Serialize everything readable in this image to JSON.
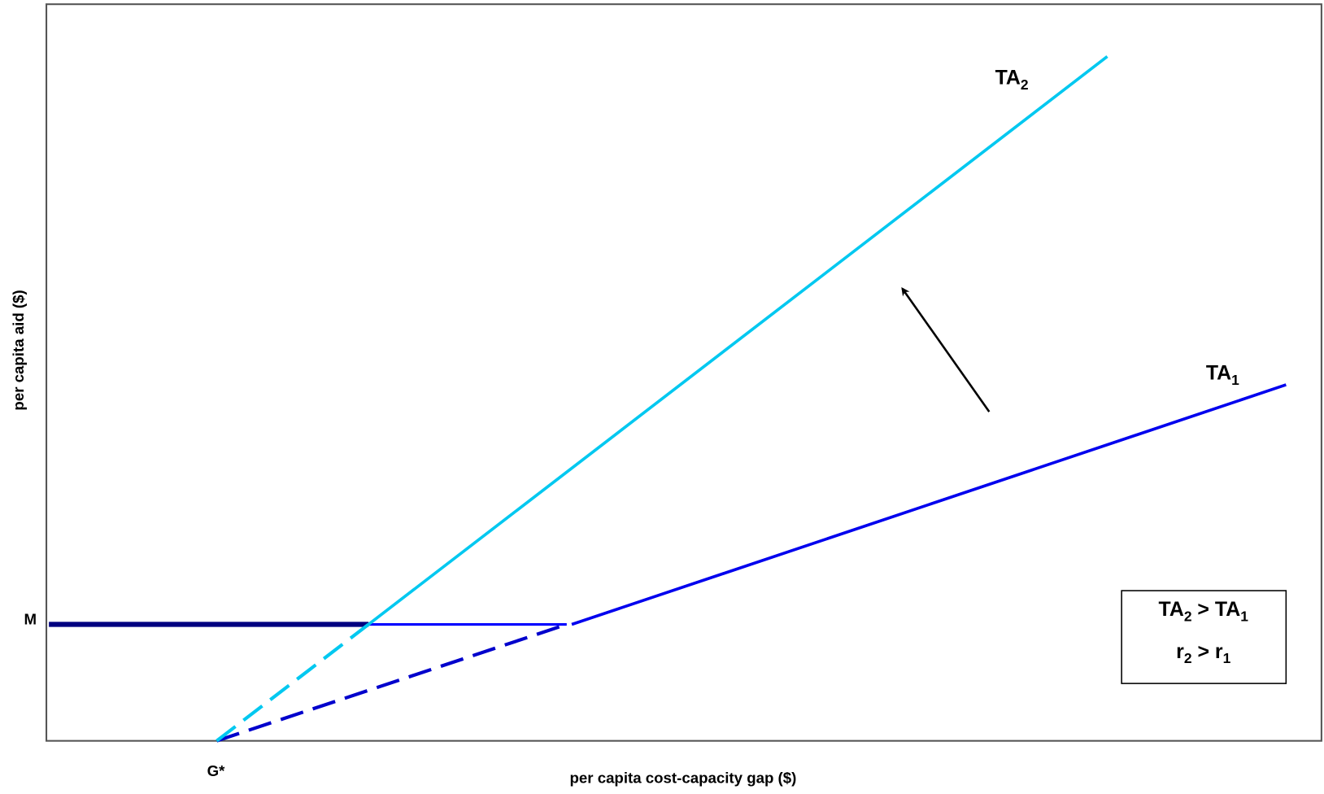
{
  "axes": {
    "y_label": "per capita aid ($)",
    "x_label": "per capita cost-capacity gap ($)",
    "y_marker": "M",
    "x_marker": "G*"
  },
  "curves": {
    "ta2": {
      "main": "TA",
      "sub": "2"
    },
    "ta1": {
      "main": "TA",
      "sub": "1"
    }
  },
  "legend_box": {
    "rows": [
      [
        {
          "main": "TA",
          "sub": "2"
        },
        {
          "main": " > TA",
          "sub": "1"
        }
      ],
      [
        {
          "main": "r",
          "sub": "2"
        },
        {
          "main": " > r",
          "sub": "1"
        }
      ]
    ]
  }
}
